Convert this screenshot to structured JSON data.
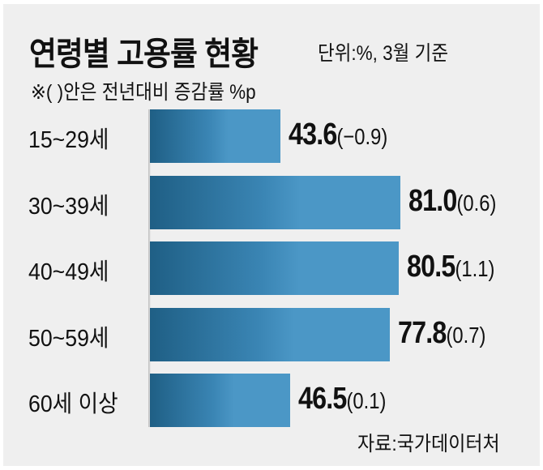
{
  "chart_data": {
    "type": "bar",
    "orientation": "horizontal",
    "title": "연령별 고용률 현황",
    "unit_note": "단위:%, 3월 기준",
    "footnote": "※(  )안은 전년대비 증감률 %p",
    "categories": [
      "15~29세",
      "30~39세",
      "40~49세",
      "50~59세",
      "60세 이상"
    ],
    "values": [
      43.6,
      81.0,
      80.5,
      77.8,
      46.5
    ],
    "value_labels": [
      "43.6",
      "81.0",
      "80.5",
      "77.8",
      "46.5"
    ],
    "changes": [
      "(−0.9)",
      "(0.6)",
      "(1.1)",
      "(0.7)",
      "(0.1)"
    ],
    "source": "자료:국가데이터처",
    "bar_color": "#4b97c6",
    "bar_color_dark": "#1f5f85",
    "grid": false
  }
}
